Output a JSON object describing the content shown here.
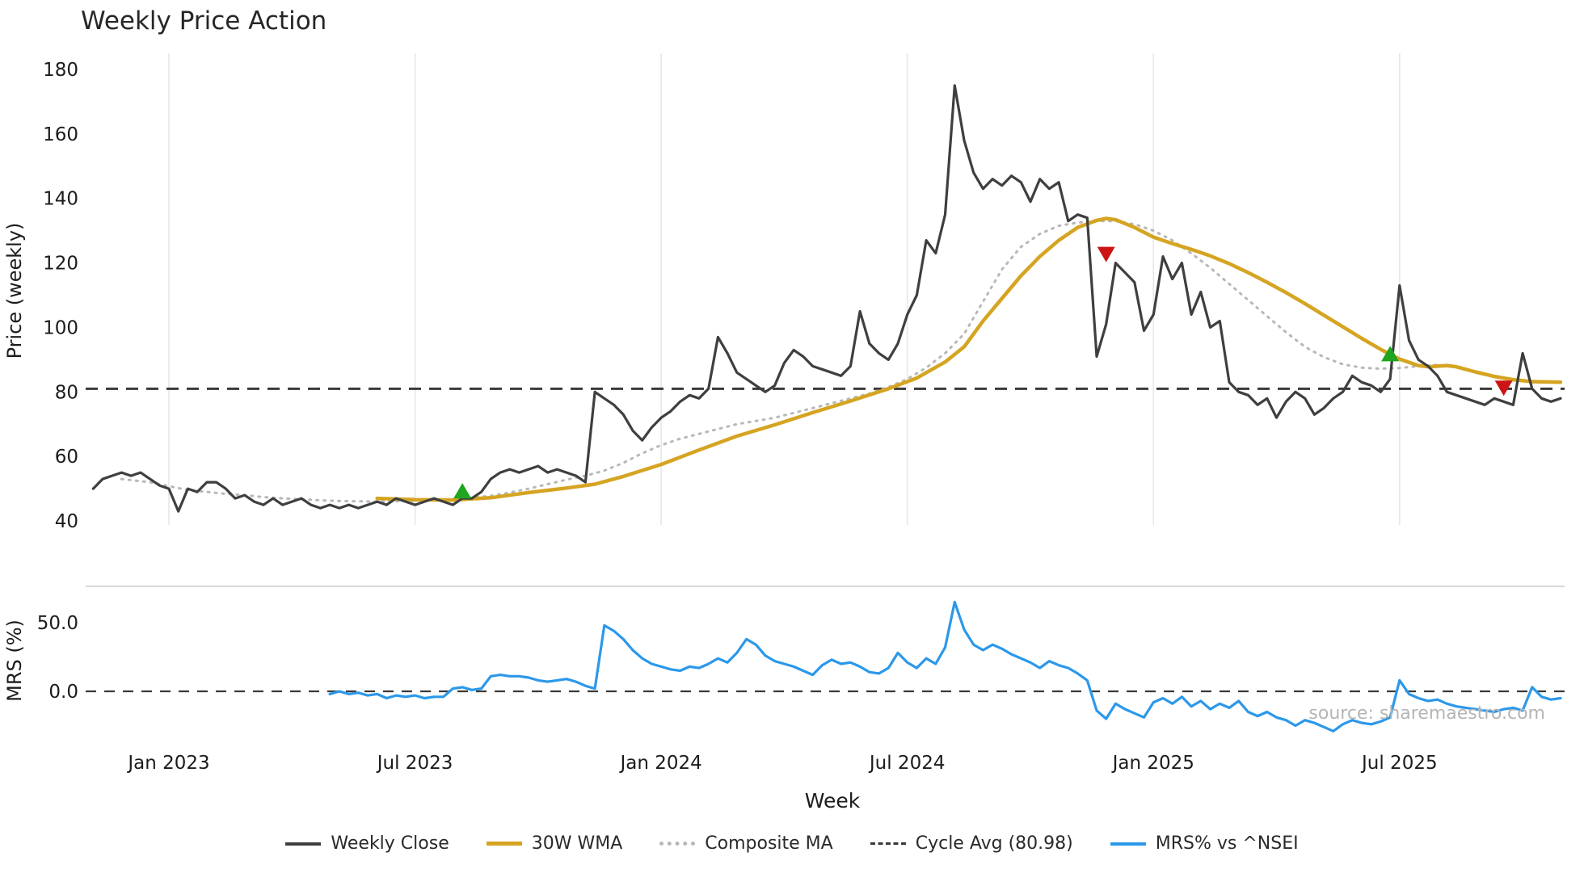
{
  "title": "Weekly Price Action",
  "source": "source: sharemaestro.com",
  "chart_data": {
    "type": "line",
    "title": "Weekly Price Action",
    "grid": "vertical-only",
    "legend_position": "bottom-center",
    "x_axis": {
      "label": "Week",
      "tick_labels": [
        "Jan 2023",
        "Jul 2023",
        "Jan 2024",
        "Jul 2024",
        "Jan 2025",
        "Jul 2025"
      ],
      "tick_week_index": [
        8,
        34,
        60,
        86,
        112,
        138
      ],
      "total_weeks": 156
    },
    "price_panel": {
      "ylabel": "Price (weekly)",
      "ylim": [
        35,
        185
      ],
      "yticks": [
        40,
        60,
        80,
        100,
        120,
        140,
        160,
        180
      ]
    },
    "mrs_panel": {
      "ylabel": "MRS (%)",
      "ylim": [
        -38,
        78
      ],
      "yticks": [
        0,
        50
      ],
      "ytick_labels": [
        "0.0",
        "50.0"
      ]
    },
    "cycle_avg": 80.98,
    "colors": {
      "grid": "#e7e7e7",
      "text": "#1c1c1c",
      "source": "#b5b5b5",
      "separator": "#cccccc",
      "cycle": "#3a3a3a",
      "zero_line": "#3a3a3a",
      "buy": "#1fa51f",
      "sell": "#cc1414",
      "background": "#ffffff"
    },
    "series": [
      {
        "name": "Composite MA",
        "color": "#b8b8b8",
        "width": 3,
        "dash": "2 7",
        "panel": "price",
        "keypoints": [
          [
            3,
            53
          ],
          [
            6,
            52
          ],
          [
            8,
            50.8
          ],
          [
            10,
            49.6
          ],
          [
            12,
            49
          ],
          [
            14,
            48.4
          ],
          [
            16,
            48
          ],
          [
            18,
            47.4
          ],
          [
            20,
            47
          ],
          [
            22,
            46.7
          ],
          [
            24,
            46.4
          ],
          [
            26,
            46.2
          ],
          [
            28,
            46.1
          ],
          [
            30,
            46
          ],
          [
            32,
            46.1
          ],
          [
            34,
            46.3
          ],
          [
            36,
            46.5
          ],
          [
            38,
            46.8
          ],
          [
            40,
            47.2
          ],
          [
            42,
            47.8
          ],
          [
            44,
            48.8
          ],
          [
            46,
            50
          ],
          [
            48,
            51.4
          ],
          [
            50,
            52.8
          ],
          [
            52,
            54
          ],
          [
            54,
            55.6
          ],
          [
            56,
            58
          ],
          [
            58,
            61
          ],
          [
            60,
            63.5
          ],
          [
            62,
            65.5
          ],
          [
            64,
            67
          ],
          [
            66,
            68.5
          ],
          [
            68,
            70
          ],
          [
            70,
            71
          ],
          [
            72,
            72
          ],
          [
            74,
            73.5
          ],
          [
            76,
            75
          ],
          [
            78,
            76.5
          ],
          [
            80,
            78
          ],
          [
            82,
            79.5
          ],
          [
            84,
            81.5
          ],
          [
            86,
            84
          ],
          [
            88,
            87.5
          ],
          [
            90,
            92
          ],
          [
            92,
            98
          ],
          [
            94,
            108
          ],
          [
            96,
            118
          ],
          [
            98,
            125
          ],
          [
            100,
            129
          ],
          [
            102,
            131.5
          ],
          [
            104,
            132.5
          ],
          [
            106,
            133
          ],
          [
            108,
            133
          ],
          [
            110,
            132
          ],
          [
            112,
            130
          ],
          [
            114,
            127
          ],
          [
            116,
            123
          ],
          [
            118,
            118.5
          ],
          [
            120,
            113.5
          ],
          [
            122,
            108.5
          ],
          [
            124,
            103.5
          ],
          [
            126,
            98.5
          ],
          [
            128,
            94
          ],
          [
            130,
            90.8
          ],
          [
            132,
            88.6
          ],
          [
            134,
            87.5
          ],
          [
            136,
            87.2
          ],
          [
            138,
            87.4
          ],
          [
            140,
            88
          ],
          [
            142,
            88.4
          ],
          [
            144,
            87.8
          ],
          [
            146,
            86.2
          ],
          [
            148,
            84.6
          ],
          [
            150,
            83.6
          ],
          [
            152,
            83.1
          ],
          [
            155,
            83
          ]
        ]
      },
      {
        "name": "30W WMA",
        "color": "#d5a421",
        "width": 4.5,
        "dash": null,
        "panel": "price",
        "keypoints": [
          [
            30,
            47
          ],
          [
            34,
            46.6
          ],
          [
            38,
            46.5
          ],
          [
            42,
            47.2
          ],
          [
            46,
            48.8
          ],
          [
            50,
            50.2
          ],
          [
            53,
            51.4
          ],
          [
            56,
            53.8
          ],
          [
            60,
            57.5
          ],
          [
            64,
            62
          ],
          [
            68,
            66.3
          ],
          [
            72,
            69.8
          ],
          [
            76,
            73.6
          ],
          [
            80,
            77.2
          ],
          [
            84,
            81
          ],
          [
            87,
            84.3
          ],
          [
            90,
            89.3
          ],
          [
            92,
            94
          ],
          [
            94,
            102
          ],
          [
            96,
            109
          ],
          [
            98,
            116
          ],
          [
            100,
            122
          ],
          [
            102,
            127
          ],
          [
            104,
            131
          ],
          [
            106,
            133.2
          ],
          [
            107,
            133.8
          ],
          [
            108,
            133.4
          ],
          [
            110,
            131
          ],
          [
            112,
            128
          ],
          [
            114,
            126
          ],
          [
            116,
            124.2
          ],
          [
            118,
            122.2
          ],
          [
            120,
            119.8
          ],
          [
            122,
            117
          ],
          [
            124,
            114
          ],
          [
            126,
            110.8
          ],
          [
            128,
            107.4
          ],
          [
            130,
            103.8
          ],
          [
            132,
            100.2
          ],
          [
            134,
            96.6
          ],
          [
            136,
            93.2
          ],
          [
            138,
            90.2
          ],
          [
            140,
            88.2
          ],
          [
            141,
            87.8
          ],
          [
            142,
            88
          ],
          [
            143,
            88.2
          ],
          [
            144,
            87.8
          ],
          [
            146,
            86.2
          ],
          [
            148,
            84.8
          ],
          [
            150,
            83.8
          ],
          [
            152,
            83.2
          ],
          [
            155,
            83
          ]
        ]
      },
      {
        "name": "Weekly Close",
        "color": "#3f3f3f",
        "width": 3.2,
        "dash": null,
        "panel": "price",
        "start_week": 0,
        "values": [
          50,
          53,
          54,
          55,
          54,
          55,
          53,
          51,
          50,
          43,
          50,
          49,
          52,
          52,
          50,
          47,
          48,
          46,
          45,
          47,
          45,
          46,
          47,
          45,
          44,
          45,
          44,
          45,
          44,
          45,
          46,
          45,
          47,
          46,
          45,
          46,
          47,
          46,
          45,
          47,
          47,
          49,
          53,
          55,
          56,
          55,
          56,
          57,
          55,
          56,
          55,
          54,
          52,
          80,
          78,
          76,
          73,
          68,
          65,
          69,
          72,
          74,
          77,
          79,
          78,
          81,
          97,
          92,
          86,
          84,
          82,
          80,
          82,
          89,
          93,
          91,
          88,
          87,
          86,
          85,
          88,
          105,
          95,
          92,
          90,
          95,
          104,
          110,
          127,
          123,
          135,
          175,
          158,
          148,
          143,
          146,
          144,
          147,
          145,
          139,
          146,
          143,
          145,
          133,
          135,
          134,
          91,
          101,
          120,
          117,
          114,
          99,
          104,
          122,
          115,
          120,
          104,
          111,
          100,
          102,
          83,
          80,
          79,
          76,
          78,
          72,
          77,
          80,
          78,
          73,
          75,
          78,
          80,
          85,
          83,
          82,
          80,
          84,
          113,
          96,
          90,
          88,
          85,
          80,
          79,
          78,
          77,
          76,
          78,
          77,
          76,
          92,
          81,
          78,
          77,
          78
        ]
      },
      {
        "name": "MRS% vs ^NSEI",
        "color": "#2b98ea",
        "width": 3.2,
        "dash": null,
        "panel": "mrs",
        "start_week": 25,
        "values": [
          -2,
          0,
          -2,
          -1,
          -3,
          -2,
          -5,
          -3,
          -4,
          -3,
          -5,
          -4,
          -4,
          2,
          3,
          1,
          2,
          11,
          12,
          11,
          11,
          10,
          8,
          7,
          8,
          9,
          7,
          4,
          2,
          48,
          44,
          38,
          30,
          24,
          20,
          18,
          16,
          15,
          18,
          17,
          20,
          24,
          21,
          28,
          38,
          34,
          26,
          22,
          20,
          18,
          15,
          12,
          19,
          23,
          20,
          21,
          18,
          14,
          13,
          17,
          28,
          21,
          17,
          24,
          20,
          32,
          65,
          45,
          34,
          30,
          34,
          31,
          27,
          24,
          21,
          17,
          22,
          19,
          17,
          13,
          8,
          -14,
          -20,
          -9,
          -13,
          -16,
          -19,
          -8,
          -5,
          -9,
          -4,
          -11,
          -7,
          -13,
          -9,
          -12,
          -7,
          -15,
          -18,
          -15,
          -19,
          -21,
          -25,
          -21,
          -23,
          -26,
          -29,
          -24,
          -21,
          -23,
          -24,
          -22,
          -19,
          8,
          -2,
          -5,
          -7,
          -6,
          -9,
          -11,
          -12,
          -13,
          -14,
          -15,
          -13,
          -12,
          -14,
          3,
          -4,
          -6,
          -5
        ]
      }
    ],
    "markers": [
      {
        "type": "buy",
        "week": 39,
        "price": 49
      },
      {
        "type": "sell",
        "week": 107,
        "price": 123
      },
      {
        "type": "buy",
        "week": 137,
        "price": 91.5
      },
      {
        "type": "sell",
        "week": 149,
        "price": 81.5
      }
    ],
    "legend": [
      {
        "label": "Weekly Close",
        "color": "#3f3f3f",
        "style": "solid",
        "swatch_width": 4
      },
      {
        "label": "30W WMA",
        "color": "#d5a421",
        "style": "solid",
        "swatch_width": 5
      },
      {
        "label": "Composite MA",
        "color": "#b8b8b8",
        "style": "dotted",
        "swatch_width": 5
      },
      {
        "label": "Cycle Avg (80.98)",
        "color": "#3a3a3a",
        "style": "dashed",
        "swatch_width": 3.5
      },
      {
        "label": "MRS% vs ^NSEI",
        "color": "#2b98ea",
        "style": "solid",
        "swatch_width": 4
      }
    ]
  }
}
